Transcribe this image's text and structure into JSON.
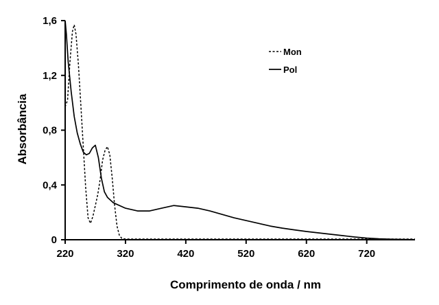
{
  "chart_data": {
    "type": "line",
    "xlabel": "Comprimento de onda / nm",
    "ylabel": "Absorbância",
    "xlim": [
      220,
      800
    ],
    "ylim": [
      0,
      1.6
    ],
    "x_ticks": [
      220,
      320,
      420,
      520,
      620,
      720
    ],
    "x_tick_labels": [
      "220",
      "320",
      "420",
      "520",
      "620",
      "720"
    ],
    "y_ticks": [
      0,
      0.4,
      0.8,
      1.2,
      1.6
    ],
    "y_tick_labels": [
      "0",
      "0,4",
      "0,8",
      "1,2",
      "1,6"
    ],
    "grid": false,
    "legend_position": "top-right",
    "series": [
      {
        "name": "Mon",
        "style": "dashed",
        "color": "#000000",
        "x": [
          220,
          224,
          228,
          232,
          235,
          238,
          242,
          246,
          250,
          254,
          258,
          262,
          266,
          270,
          274,
          278,
          282,
          286,
          290,
          294,
          298,
          302,
          306,
          310,
          314,
          320,
          360,
          420,
          500,
          600,
          700,
          800
        ],
        "y": [
          0.97,
          1.02,
          1.3,
          1.52,
          1.57,
          1.5,
          1.28,
          0.98,
          0.68,
          0.38,
          0.16,
          0.12,
          0.17,
          0.25,
          0.33,
          0.44,
          0.58,
          0.65,
          0.68,
          0.62,
          0.45,
          0.25,
          0.1,
          0.03,
          0.01,
          0.005,
          0.005,
          0.005,
          0.005,
          0.005,
          0.005,
          0.005
        ]
      },
      {
        "name": "Pol",
        "style": "solid",
        "color": "#000000",
        "x": [
          220,
          222,
          225,
          230,
          235,
          240,
          245,
          250,
          255,
          260,
          265,
          270,
          275,
          280,
          285,
          290,
          300,
          320,
          340,
          360,
          380,
          400,
          420,
          440,
          460,
          480,
          500,
          520,
          540,
          560,
          580,
          600,
          620,
          640,
          660,
          680,
          700,
          720,
          740,
          760,
          780,
          800
        ],
        "y": [
          1.6,
          1.5,
          1.3,
          1.08,
          0.9,
          0.78,
          0.7,
          0.64,
          0.62,
          0.63,
          0.67,
          0.69,
          0.6,
          0.45,
          0.35,
          0.31,
          0.27,
          0.23,
          0.21,
          0.21,
          0.23,
          0.25,
          0.24,
          0.23,
          0.21,
          0.185,
          0.16,
          0.14,
          0.12,
          0.1,
          0.085,
          0.072,
          0.06,
          0.05,
          0.04,
          0.03,
          0.02,
          0.012,
          0.007,
          0.004,
          0.002,
          0.001
        ]
      }
    ]
  }
}
